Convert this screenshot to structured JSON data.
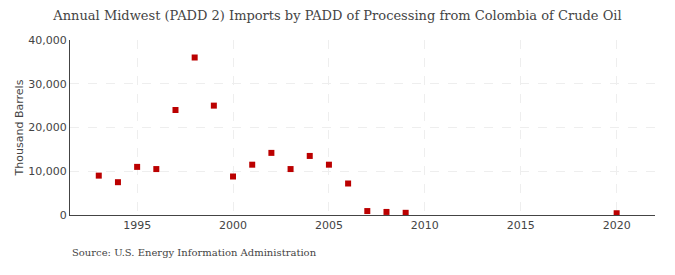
{
  "chart_data": {
    "type": "scatter",
    "title": "Annual Midwest (PADD 2) Imports by PADD of Processing from Colombia of Crude Oil",
    "y_label": "Thousand Barrels",
    "annotations": [
      "Source: U.S. Energy Information Administration"
    ],
    "x": [
      1993,
      1994,
      1995,
      1996,
      1997,
      1998,
      1999,
      2000,
      2001,
      2002,
      2003,
      2004,
      2005,
      2006,
      2007,
      2008,
      2009,
      2020
    ],
    "values": [
      9000,
      7500,
      11000,
      10500,
      24000,
      36000,
      25000,
      8800,
      11500,
      14200,
      10500,
      13500,
      11500,
      7200,
      900,
      700,
      500,
      400
    ],
    "color": "#bb0000",
    "marker": "square",
    "xlim": [
      1991.5,
      2022
    ],
    "xticks": [
      1995,
      2000,
      2005,
      2010,
      2015,
      2020
    ],
    "ylim": [
      0,
      40000
    ],
    "yticks": [
      0,
      {
        "value": 10000,
        "label": "10,000"
      },
      {
        "value": 20000,
        "label": "20,000"
      },
      {
        "value": 30000,
        "label": "30,000"
      },
      {
        "value": 40000,
        "label": "40,000"
      }
    ],
    "grid": true
  }
}
